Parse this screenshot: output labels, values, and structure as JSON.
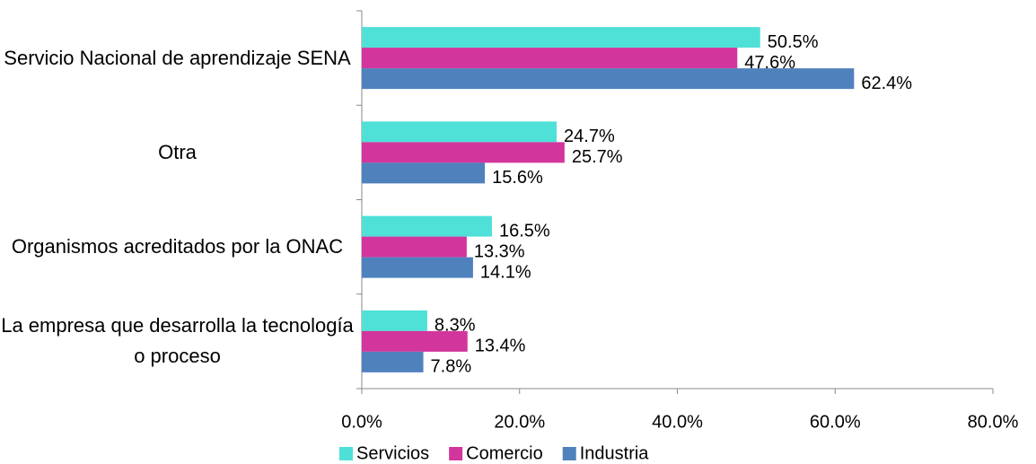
{
  "chart_data": {
    "type": "bar",
    "orientation": "horizontal",
    "categories": [
      "Servicio Nacional de aprendizaje SENA",
      "Otra",
      "Organismos acreditados por la ONAC",
      "La empresa que desarrolla la tecnología o proceso"
    ],
    "series": [
      {
        "name": "Servicios",
        "color": "#4fe0d8",
        "values": [
          50.5,
          24.7,
          16.5,
          8.3
        ],
        "value_labels": [
          "50.5%",
          "24.7%",
          "16.5%",
          "8.3%"
        ]
      },
      {
        "name": "Comercio",
        "color": "#d2359b",
        "values": [
          47.6,
          25.7,
          13.3,
          13.4
        ],
        "value_labels": [
          "47.6%",
          "25.7%",
          "13.3%",
          "13.4%"
        ]
      },
      {
        "name": "Industria",
        "color": "#4f81bd",
        "values": [
          62.4,
          15.6,
          14.1,
          7.8
        ],
        "value_labels": [
          "62.4%",
          "15.6%",
          "14.1%",
          "7.8%"
        ]
      }
    ],
    "xlim": [
      0,
      80
    ],
    "xticks": [
      {
        "value": 0,
        "label": "0.0%"
      },
      {
        "value": 20,
        "label": "20.0%"
      },
      {
        "value": 40,
        "label": "40.0%"
      },
      {
        "value": 60,
        "label": "60.0%"
      },
      {
        "value": 80,
        "label": "80.0%"
      }
    ],
    "legend": "bottom"
  }
}
